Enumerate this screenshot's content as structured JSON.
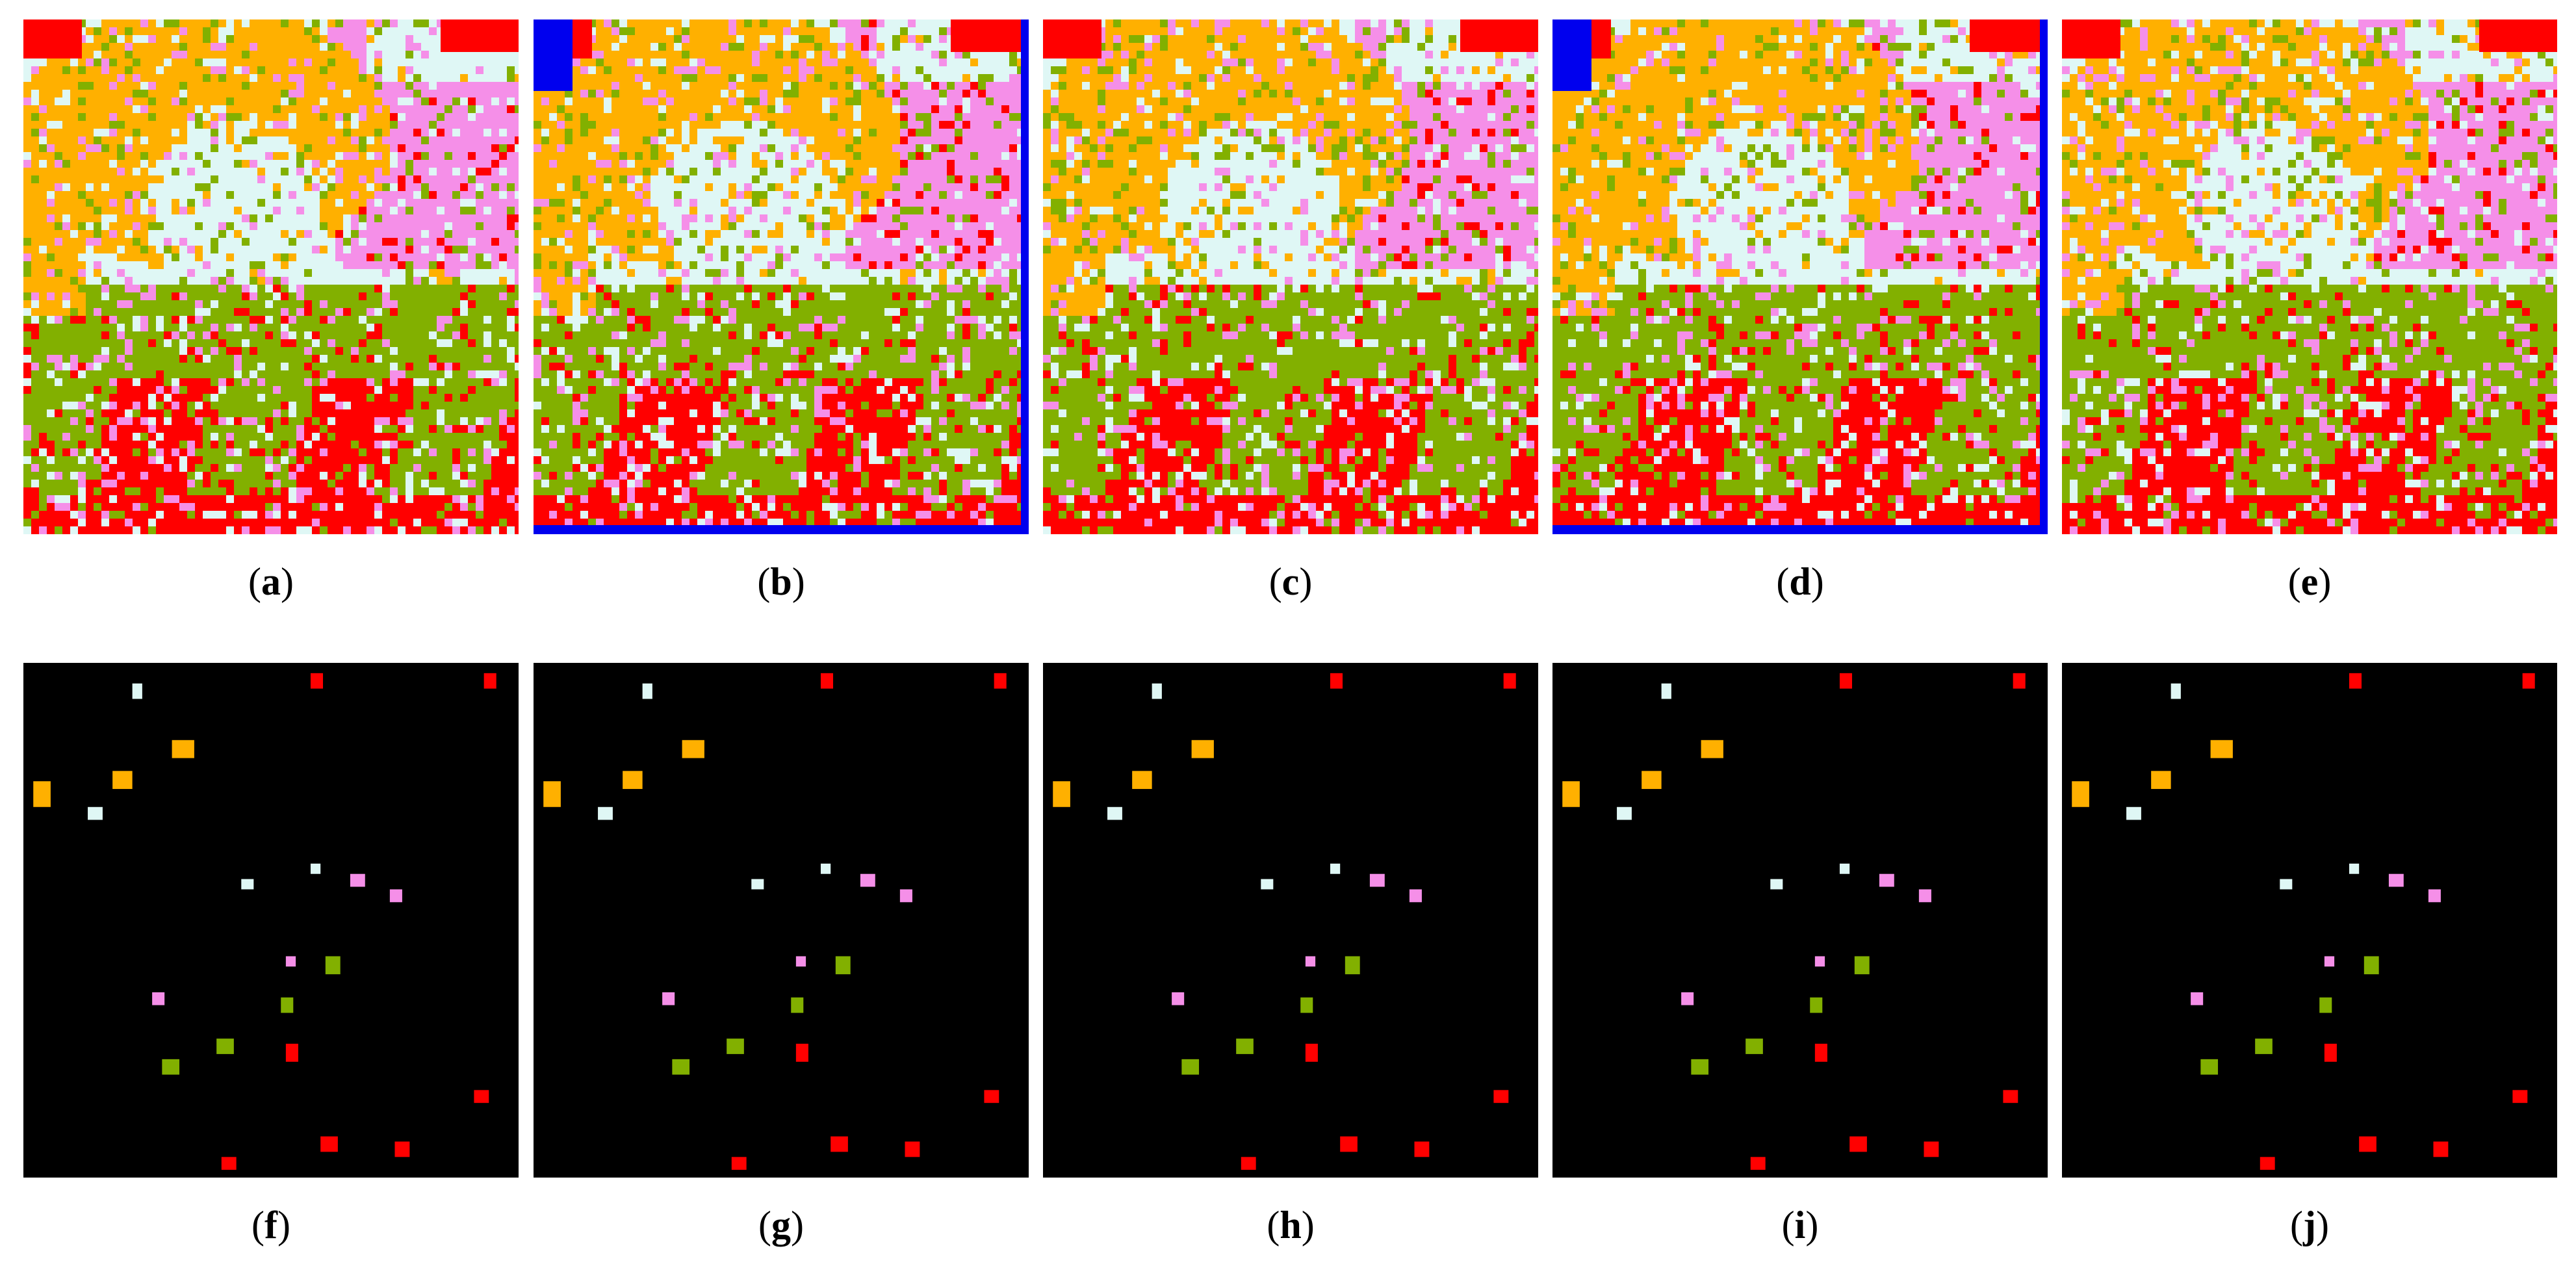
{
  "figure": {
    "panels": [
      {
        "id": "a",
        "caption": "a",
        "row": "classification-map",
        "noise_seed": 11,
        "blue_border": false
      },
      {
        "id": "b",
        "caption": "b",
        "row": "classification-map",
        "noise_seed": 23,
        "blue_border": true
      },
      {
        "id": "c",
        "caption": "c",
        "row": "classification-map",
        "noise_seed": 37,
        "blue_border": false
      },
      {
        "id": "d",
        "caption": "d",
        "row": "classification-map",
        "noise_seed": 51,
        "blue_border": true
      },
      {
        "id": "e",
        "caption": "e",
        "row": "classification-map",
        "noise_seed": 67,
        "blue_border": false
      },
      {
        "id": "f",
        "caption": "f",
        "row": "training-samples"
      },
      {
        "id": "g",
        "caption": "g",
        "row": "training-samples"
      },
      {
        "id": "h",
        "caption": "h",
        "row": "training-samples"
      },
      {
        "id": "i",
        "caption": "i",
        "row": "training-samples"
      },
      {
        "id": "j",
        "caption": "j",
        "row": "training-samples"
      }
    ],
    "class_colors": {
      "orange": "#ffb000",
      "light_cyan": "#dff7f5",
      "pink": "#f58fe8",
      "green": "#82b000",
      "red": "#ff0000",
      "blue": "#0000ee"
    },
    "sample_background": "#000000",
    "caption_open": "(",
    "caption_close": ")"
  }
}
